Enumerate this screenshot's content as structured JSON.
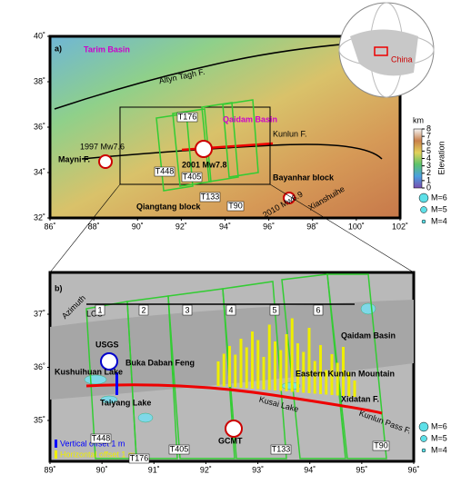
{
  "panel_a": {
    "label": "a)",
    "xticks": [
      {
        "value": 86,
        "label": "86˚"
      },
      {
        "value": 88,
        "label": "88˚"
      },
      {
        "value": 90,
        "label": "90˚"
      },
      {
        "value": 92,
        "label": "92˚"
      },
      {
        "value": 94,
        "label": "94˚"
      },
      {
        "value": 96,
        "label": "96˚"
      },
      {
        "value": 98,
        "label": "98˚"
      },
      {
        "value": 100,
        "label": "100˚"
      },
      {
        "value": 102,
        "label": "102˚"
      }
    ],
    "yticks": [
      {
        "value": 32,
        "label": "32˚"
      },
      {
        "value": 34,
        "label": "34˚"
      },
      {
        "value": 36,
        "label": "36˚"
      },
      {
        "value": 38,
        "label": "38˚"
      },
      {
        "value": 40,
        "label": "40˚"
      }
    ],
    "tarim": "Tarim Basin",
    "altyn": "Altyn Tagh F.",
    "qaidam": "Qaidam Basin",
    "kunlun": "Kunlun F.",
    "event_1997": "1997 Mw7.6",
    "mayni": "Mayni F.",
    "event_2001": "2001 Mw7.8",
    "bayanhar": "Bayanhar block",
    "qiangtang": "Qiangtang block",
    "xianshuihe": "Xianshuihe",
    "event_2010": "2010 Mw6.9",
    "tracks": [
      "T176",
      "T448",
      "T405",
      "T133",
      "T90"
    ],
    "globe_label": "China",
    "legend": {
      "unit": "km",
      "title": "Elevation",
      "ticks": [
        0,
        1,
        2,
        3,
        4,
        5,
        6,
        7,
        8
      ],
      "magnitudes": [
        "M=6",
        "M=5",
        "M=4"
      ]
    }
  },
  "panel_b": {
    "label": "b)",
    "xticks": [
      {
        "value": 89,
        "label": "89˚"
      },
      {
        "value": 90,
        "label": "90˚"
      },
      {
        "value": 91,
        "label": "91˚"
      },
      {
        "value": 92,
        "label": "92˚"
      },
      {
        "value": 93,
        "label": "93˚"
      },
      {
        "value": 94,
        "label": "94˚"
      },
      {
        "value": 95,
        "label": "95˚"
      },
      {
        "value": 96,
        "label": "96˚"
      }
    ],
    "yticks": [
      {
        "value": 35,
        "label": "35˚"
      },
      {
        "value": 36,
        "label": "36˚"
      },
      {
        "value": 37,
        "label": "37˚"
      }
    ],
    "azimuth": "Azimuth",
    "los": "LOS",
    "segments": [
      "1",
      "2",
      "3",
      "4",
      "5",
      "6"
    ],
    "usgs": "USGS",
    "buka": "Buka Daban Feng",
    "kushuihuan": "Kushuihuan Lake",
    "taiyang": "Taiyang Lake",
    "qaidam": "Qaidam Basin",
    "kunlun_mtn": "Eastern Kunlun Mountain",
    "xidatan": "Xidatan F.",
    "kunlun_pass": "Kunlun Pass F.",
    "kusai": "Kusai Lake",
    "gcmt": "GCMT",
    "vertical_legend": "Vertical offset 1 m",
    "horizontal_legend": "Horizontal offset 1 m",
    "tracks": [
      "T448",
      "T176",
      "T405",
      "T133",
      "T90"
    ],
    "horizontal_offsets": [
      3,
      4,
      5,
      4,
      6,
      5,
      7,
      6,
      4,
      8,
      6,
      5,
      7,
      9,
      6,
      5,
      8,
      4,
      6,
      3,
      5,
      4,
      6,
      3,
      2
    ],
    "legend": {
      "magnitudes": [
        "M=6",
        "M=5",
        "M=4"
      ]
    }
  }
}
